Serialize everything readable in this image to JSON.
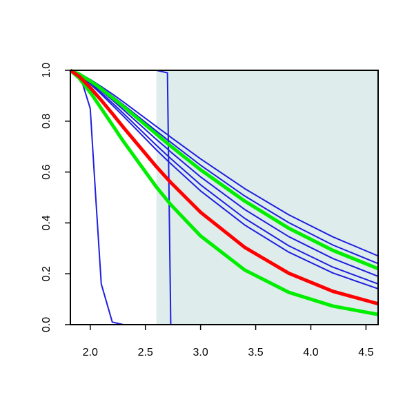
{
  "chart_data": {
    "type": "line",
    "x": [
      1.82,
      1.9,
      2.0,
      2.05,
      2.1,
      2.2,
      2.3,
      2.6,
      2.7,
      2.73,
      3.0,
      3.4,
      3.8,
      4.2,
      4.61
    ],
    "series": [
      {
        "color": "#1f1fe0",
        "width": 2,
        "values": [
          1,
          0.987,
          0.964,
          0.95,
          0.936,
          0.907,
          0.876,
          0.779,
          0.747,
          0.737,
          0.652,
          0.535,
          0.432,
          0.345,
          0.27
        ]
      },
      {
        "color": "#1f1fe0",
        "width": 2,
        "values": [
          1,
          0.986,
          0.96,
          0.946,
          0.931,
          0.899,
          0.865,
          0.761,
          0.727,
          0.717,
          0.627,
          0.506,
          0.401,
          0.313,
          0.24
        ]
      },
      {
        "color": "#1f1fe0",
        "width": 2,
        "values": [
          1,
          0.984,
          0.954,
          0.937,
          0.92,
          0.883,
          0.845,
          0.728,
          0.691,
          0.679,
          0.581,
          0.453,
          0.346,
          0.26,
          0.19
        ]
      },
      {
        "color": "#1f1fe0",
        "width": 2,
        "values": [
          1,
          0.982,
          0.95,
          0.931,
          0.912,
          0.872,
          0.831,
          0.705,
          0.665,
          0.653,
          0.55,
          0.418,
          0.31,
          0.226,
          0.16
        ]
      },
      {
        "color": "#1f1fe0",
        "width": 2,
        "values": [
          1,
          0.981,
          0.946,
          0.926,
          0.906,
          0.863,
          0.82,
          0.687,
          0.645,
          0.633,
          0.526,
          0.392,
          0.285,
          0.203,
          0.141
        ]
      },
      {
        "color": "#1f1fe0",
        "width": 2,
        "values": [
          1,
          0.99,
          0.85,
          0.5,
          0.16,
          0.01,
          0,
          0,
          0,
          0,
          0,
          0,
          0,
          0,
          0
        ]
      },
      {
        "color": "#1f1fe0",
        "width": 2,
        "values": [
          1,
          1,
          1,
          1,
          1,
          1,
          1,
          1,
          0.99,
          0,
          0,
          0,
          0,
          0,
          0
        ]
      },
      {
        "color": "#00ee00",
        "width": 5,
        "values": [
          1,
          0.985,
          0.958,
          0.943,
          0.927,
          0.893,
          0.858,
          0.749,
          0.713,
          0.702,
          0.609,
          0.486,
          0.379,
          0.292,
          0.22
        ]
      },
      {
        "color": "#00ee00",
        "width": 5,
        "values": [
          1,
          0.969,
          0.913,
          0.882,
          0.85,
          0.786,
          0.721,
          0.541,
          0.488,
          0.472,
          0.349,
          0.215,
          0.127,
          0.073,
          0.04
        ]
      },
      {
        "color": "#ff0000",
        "width": 5,
        "values": [
          1,
          0.976,
          0.932,
          0.907,
          0.882,
          0.83,
          0.776,
          0.621,
          0.573,
          0.559,
          0.442,
          0.304,
          0.202,
          0.131,
          0.082
        ]
      }
    ],
    "shaded_from": 2.6,
    "shade_color": "#deeceb",
    "xlim": [
      1.82,
      4.61
    ],
    "ylim": [
      0,
      1
    ],
    "xticks": [
      {
        "value": 2,
        "label": "2.0"
      },
      2.5,
      {
        "value": 3,
        "label": "3.0"
      },
      3.5,
      {
        "value": 4,
        "label": "4.0"
      },
      4.5
    ],
    "yticks": [
      {
        "value": 0,
        "label": "0.0"
      },
      0.2,
      0.4,
      0.6,
      0.8,
      {
        "value": 1,
        "label": "1.0"
      }
    ]
  }
}
